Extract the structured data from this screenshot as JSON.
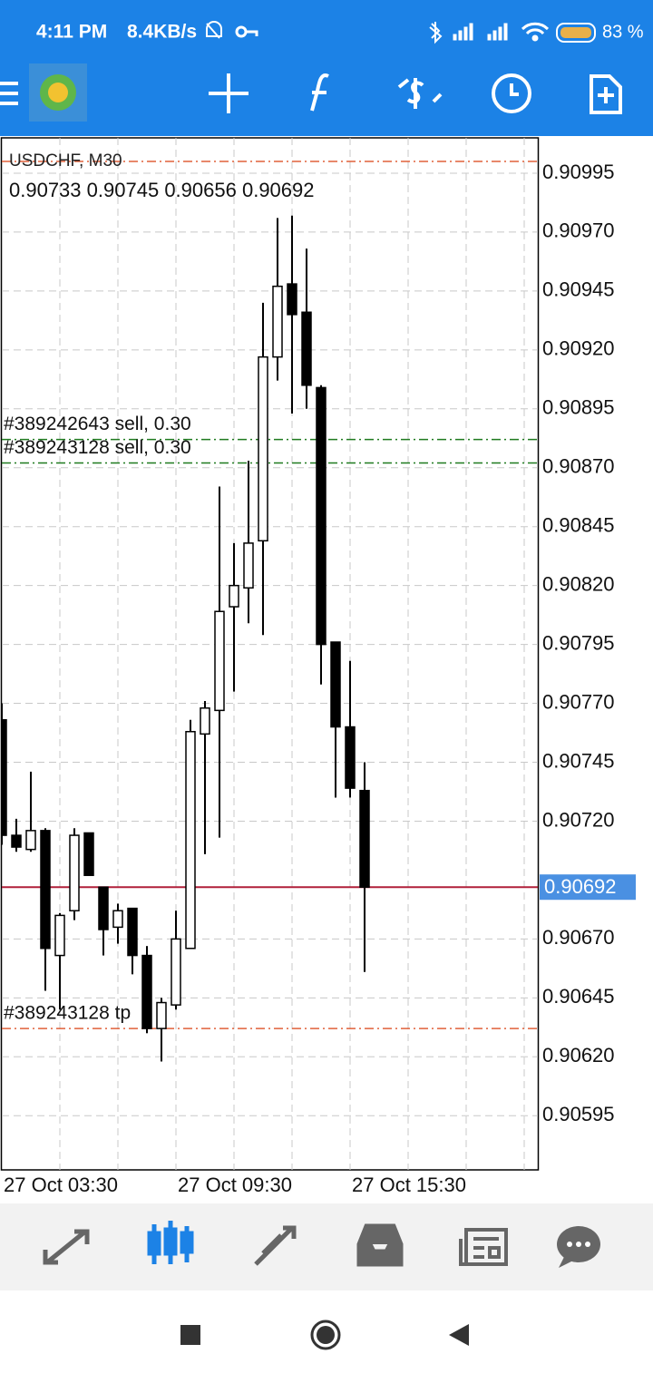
{
  "status_bar": {
    "time": "4:11 PM",
    "speed": "8.4KB/s",
    "battery": "83 %"
  },
  "chart_data": {
    "type": "candlestick",
    "title": "USDCHF, M30",
    "categories": [
      "27 Oct 03:30",
      null,
      null,
      null,
      null,
      null,
      null,
      null,
      null,
      null,
      null,
      null,
      "27 Oct 09:30",
      null,
      null,
      null,
      null,
      null,
      null,
      null,
      null,
      null,
      null,
      null,
      "27 Oct 15:30",
      null
    ],
    "open": [
      0.90763,
      0.90714,
      0.90708,
      0.90716,
      0.90663,
      0.90682,
      0.90715,
      0.90692,
      0.90675,
      0.90683,
      0.90663,
      0.90632,
      0.90642,
      0.90666,
      0.90757,
      0.90767,
      0.90811,
      0.90819,
      0.90839,
      0.90917,
      0.90948,
      0.90936,
      0.90904,
      0.90796,
      0.9076,
      0.90733
    ],
    "high": [
      0.9077,
      0.90721,
      0.90741,
      0.90717,
      0.90681,
      0.90717,
      0.90715,
      0.90692,
      0.90685,
      0.90683,
      0.90667,
      0.90645,
      0.90682,
      0.90763,
      0.90771,
      0.90862,
      0.90838,
      0.90873,
      0.9094,
      0.90976,
      0.90977,
      0.90963,
      0.90905,
      0.90796,
      0.90788,
      0.90745
    ],
    "low": [
      0.9071,
      0.90707,
      0.90707,
      0.90648,
      0.9064,
      0.90678,
      0.90697,
      0.90663,
      0.90668,
      0.90655,
      0.9063,
      0.90618,
      0.9064,
      0.90666,
      0.90706,
      0.90713,
      0.90775,
      0.90804,
      0.90799,
      0.90907,
      0.90893,
      0.90895,
      0.90778,
      0.9073,
      0.9073,
      0.90656
    ],
    "close": [
      0.90714,
      0.90709,
      0.90716,
      0.90666,
      0.9068,
      0.90714,
      0.90697,
      0.90674,
      0.90682,
      0.90663,
      0.90632,
      0.90643,
      0.9067,
      0.90758,
      0.90768,
      0.90809,
      0.9082,
      0.90838,
      0.90917,
      0.90947,
      0.90935,
      0.90905,
      0.90795,
      0.9076,
      0.90734,
      0.90692
    ],
    "ylim": [
      0.90572,
      0.9101
    ],
    "yticks": [
      0.90995,
      {
        "value": 0.9097,
        "label": "0.90970"
      },
      0.90945,
      {
        "value": 0.9092,
        "label": "0.90920"
      },
      0.90895,
      {
        "value": 0.9087,
        "label": "0.90870"
      },
      0.90845,
      {
        "value": 0.9082,
        "label": "0.90820"
      },
      0.90795,
      {
        "value": 0.9077,
        "label": "0.90770"
      },
      0.90745,
      {
        "value": 0.9072,
        "label": "0.90720"
      },
      {
        "value": 0.9067,
        "label": "0.90670"
      },
      0.90645,
      {
        "value": 0.9062,
        "label": "0.90620"
      },
      0.90595
    ],
    "grid": true,
    "current_price": 0.90692,
    "current_price_color": "#4a90e2",
    "rising_color": "#ffffff",
    "falling_color": "#000000",
    "levels": [
      {
        "value": 0.91,
        "color": "#e0603a"
      },
      {
        "value": 0.90882,
        "color": "#1f7a1f",
        "label": "#389242643 sell, 0.30"
      },
      {
        "value": 0.90872,
        "color": "#1f7a1f",
        "label": "#389243128 sell, 0.30"
      },
      {
        "value": 0.90632,
        "color": "#e0603a",
        "label": "#389243128 tp"
      }
    ]
  }
}
